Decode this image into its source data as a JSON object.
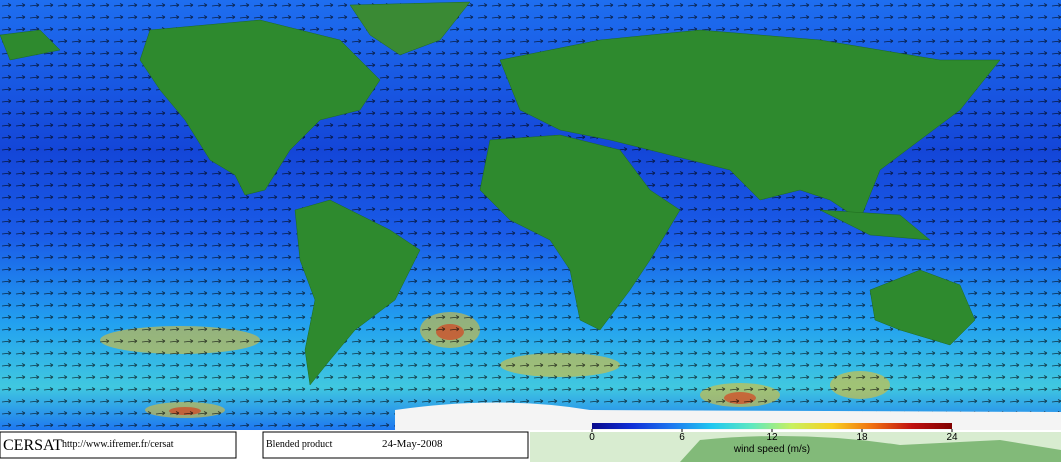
{
  "header": {
    "logo": "CERSAT",
    "url": "http://www.ifremer.fr/cersat"
  },
  "product": {
    "name": "Blended product",
    "date": "24-May-2008"
  },
  "colorbar": {
    "label": "wind speed (m/s)",
    "lim": [
      0,
      24
    ],
    "ticks": [
      0,
      6,
      12,
      18,
      24
    ],
    "colors": [
      "#0a0a8c",
      "#1030d8",
      "#1e78f0",
      "#20c8f0",
      "#60e8c0",
      "#c8f060",
      "#f8d020",
      "#f07010",
      "#c01010",
      "#800000"
    ]
  }
}
